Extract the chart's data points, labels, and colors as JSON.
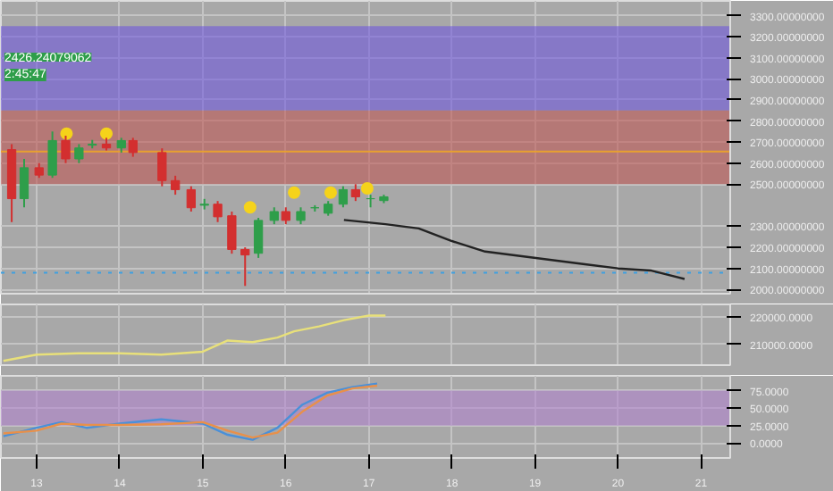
{
  "chart_data": [
    {
      "type": "candlestick",
      "xlim": [
        12.57,
        21.35
      ],
      "ylim": [
        1980,
        3370
      ],
      "xticks": [
        13,
        14,
        15,
        16,
        17,
        18,
        19,
        20,
        21
      ],
      "x": [
        12.7,
        12.85,
        13.03,
        13.19,
        13.35,
        13.51,
        13.67,
        13.84,
        14.02,
        14.16,
        14.51,
        14.67,
        14.86,
        15.02,
        15.18,
        15.35,
        15.51,
        15.67,
        15.86,
        16.0,
        16.18,
        16.35,
        16.51,
        16.69,
        16.84,
        17.02,
        17.18
      ],
      "ohlc": [
        [
          2664,
          2690,
          2320,
          2431
        ],
        [
          2431,
          2620,
          2390,
          2578
        ],
        [
          2578,
          2600,
          2530,
          2543
        ],
        [
          2543,
          2750,
          2530,
          2707
        ],
        [
          2707,
          2730,
          2600,
          2620
        ],
        [
          2620,
          2690,
          2600,
          2672
        ],
        [
          2685,
          2710,
          2670,
          2690
        ],
        [
          2690,
          2720,
          2660,
          2672
        ],
        [
          2672,
          2720,
          2650,
          2707
        ],
        [
          2707,
          2720,
          2630,
          2650
        ],
        [
          2650,
          2670,
          2490,
          2517
        ],
        [
          2517,
          2540,
          2450,
          2474
        ],
        [
          2474,
          2490,
          2370,
          2388
        ],
        [
          2400,
          2430,
          2380,
          2405
        ],
        [
          2405,
          2420,
          2320,
          2345
        ],
        [
          2350,
          2370,
          2170,
          2190
        ],
        [
          2190,
          2200,
          2017,
          2164
        ],
        [
          2172,
          2340,
          2150,
          2328
        ],
        [
          2328,
          2390,
          2310,
          2370
        ],
        [
          2370,
          2390,
          2310,
          2328
        ],
        [
          2328,
          2390,
          2310,
          2370
        ],
        [
          2388,
          2400,
          2370,
          2388
        ],
        [
          2362,
          2420,
          2350,
          2405
        ],
        [
          2405,
          2490,
          2390,
          2474
        ],
        [
          2474,
          2500,
          2420,
          2440
        ],
        [
          2431,
          2450,
          2390,
          2431
        ],
        [
          2422,
          2450,
          2410,
          2440
        ]
      ],
      "colors": [
        "#d32f2f",
        "#2e9e4a",
        "#d32f2f",
        "#2e9e4a",
        "#d32f2f",
        "#2e9e4a",
        "#2e9e4a",
        "#d32f2f",
        "#2e9e4a",
        "#d32f2f",
        "#d32f2f",
        "#d32f2f",
        "#d32f2f",
        "#2e9e4a",
        "#d32f2f",
        "#d32f2f",
        "#d32f2f",
        "#2e9e4a",
        "#2e9e4a",
        "#d32f2f",
        "#2e9e4a",
        "#2e9e4a",
        "#2e9e4a",
        "#2e9e4a",
        "#d32f2f",
        "#2e9e4a",
        "#2e9e4a"
      ],
      "yticks": [
        {
          "value": 2000,
          "label": "2000.00000000"
        },
        {
          "value": 2100,
          "label": "2100.00000000"
        },
        {
          "value": 2200,
          "label": "2200.00000000"
        },
        {
          "value": 2300,
          "label": "2300.00000000"
        },
        {
          "value": 2500,
          "label": "2500.00000000"
        },
        {
          "value": 2600,
          "label": "2600.00000000"
        },
        {
          "value": 2700,
          "label": "2700.00000000"
        },
        {
          "value": 2800,
          "label": "2800.00000000"
        },
        {
          "value": 2900,
          "label": "2900.00000000"
        },
        {
          "value": 3000,
          "label": "3000.00000000"
        },
        {
          "value": 3100,
          "label": "3100.00000000"
        },
        {
          "value": 3200,
          "label": "3200.00000000"
        },
        {
          "value": 3300,
          "label": "3300.00000000"
        }
      ],
      "series": [
        {
          "type": "line",
          "color": "#222222",
          "x": [
            16.7,
            17.2,
            17.6,
            18.0,
            18.4,
            18.8,
            19.2,
            19.6,
            20.0,
            20.4,
            20.8
          ],
          "values": [
            2330,
            2310,
            2290,
            2230,
            2180,
            2160,
            2140,
            2120,
            2100,
            2090,
            2050
          ]
        },
        {
          "type": "scatter",
          "color": "#f5d31a",
          "x": [
            13.36,
            13.84,
            15.57,
            16.1,
            16.54,
            16.98
          ],
          "values": [
            2740,
            2740,
            2390,
            2460,
            2460,
            2480
          ]
        }
      ],
      "bands": [
        {
          "axis": "y",
          "from": 2850,
          "to": 3250,
          "color": "#6a50e0"
        },
        {
          "axis": "y",
          "from": 2500,
          "to": 2850,
          "color": "#c0504d"
        }
      ],
      "ref_lines": [
        {
          "axis": "y",
          "value": 2655,
          "color": "#e8a030",
          "line_style": "solid"
        },
        {
          "axis": "y",
          "value": 2080,
          "color": "#3fa0e0",
          "line_style": "dotted"
        }
      ],
      "annotations": [
        "2426.24079062",
        "2:45:47"
      ],
      "grid": true,
      "tick_labels": "y"
    },
    {
      "type": "line",
      "xlim": [
        12.57,
        21.35
      ],
      "ylim": [
        202350,
        224700
      ],
      "xticks": [
        13,
        14,
        15,
        16,
        17,
        18,
        19,
        20,
        21
      ],
      "yticks": [
        {
          "value": 210000,
          "label": "210000.0000"
        },
        {
          "value": 220000,
          "label": "220000.0000"
        }
      ],
      "series": [
        {
          "color": "#e8e07a",
          "x": [
            12.6,
            13.0,
            13.5,
            14.0,
            14.5,
            15.0,
            15.3,
            15.6,
            15.9,
            16.1,
            16.4,
            16.7,
            17.0,
            17.2
          ],
          "values": [
            203900,
            206200,
            206700,
            206700,
            206200,
            207300,
            211400,
            210800,
            212500,
            214800,
            216600,
            218900,
            220600,
            220600
          ]
        }
      ],
      "grid": true,
      "tick_labels": "y"
    },
    {
      "type": "line",
      "xlim": [
        12.57,
        21.35
      ],
      "ylim": [
        -21,
        96
      ],
      "xticks": [
        13,
        14,
        15,
        16,
        17,
        18,
        19,
        20,
        21
      ],
      "yticks": [
        {
          "value": 0,
          "label": "0.0000"
        },
        {
          "value": 25,
          "label": "25.0000"
        },
        {
          "value": 50,
          "label": "50.0000"
        },
        {
          "value": 75,
          "label": "75.0000"
        }
      ],
      "bands": [
        {
          "axis": "y",
          "from": 25,
          "to": 75,
          "color": "#b07fd0"
        }
      ],
      "series": [
        {
          "color": "#4a90d9",
          "x": [
            12.6,
            13.0,
            13.3,
            13.6,
            14.0,
            14.5,
            15.0,
            15.3,
            15.6,
            15.9,
            16.2,
            16.5,
            16.8,
            17.1
          ],
          "values": [
            10,
            22,
            30,
            22,
            28,
            34,
            28,
            12,
            5,
            22,
            55,
            72,
            80,
            85
          ]
        },
        {
          "color": "#e8904a",
          "x": [
            12.6,
            13.0,
            13.3,
            13.6,
            14.0,
            14.5,
            15.0,
            15.3,
            15.6,
            15.9,
            16.2,
            16.5,
            16.8,
            17.1
          ],
          "values": [
            14,
            18,
            28,
            26,
            26,
            27,
            30,
            18,
            8,
            15,
            45,
            68,
            78,
            82
          ]
        }
      ],
      "grid": true
    }
  ]
}
